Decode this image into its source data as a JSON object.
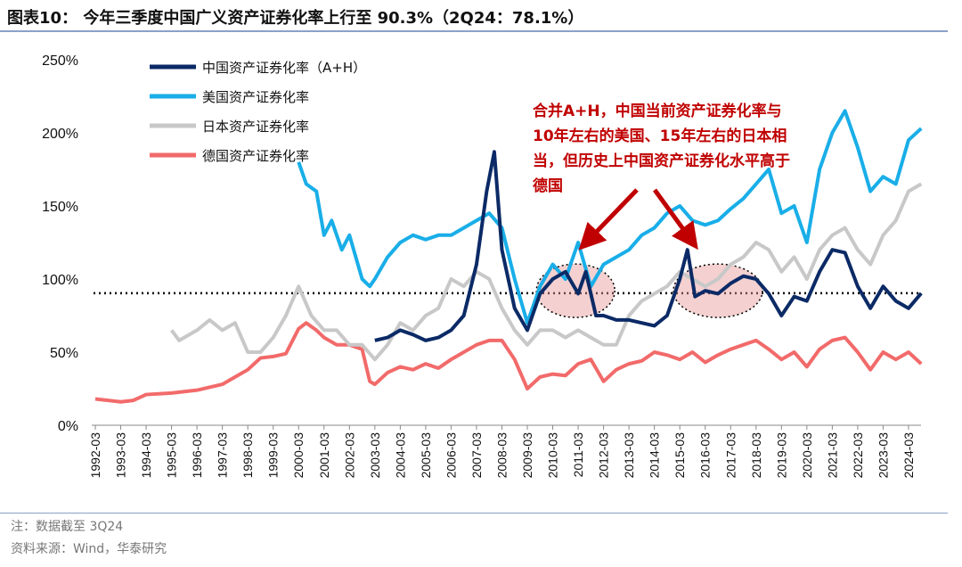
{
  "title": "图表10： 今年三季度中国广义资产证券化率上行至 90.3%（2Q24：78.1%）",
  "annotation": "合并A+H，中国当前资产证券化率与10年左右的美国、15年左右的日本相当，但历史上中国资产证券化水平高于德国",
  "footnotes": {
    "note": "注：数据截至 3Q24",
    "source": "资料来源：Wind，华泰研究"
  },
  "chart_data": {
    "type": "line",
    "title": "今年三季度中国广义资产证券化率上行至 90.3%（2Q24：78.1%）",
    "xlabel": "",
    "ylabel": "",
    "ylim": [
      0,
      250
    ],
    "yticks": [
      "0%",
      "50%",
      "100%",
      "150%",
      "200%",
      "250%"
    ],
    "xticks": [
      "1992-03",
      "1993-03",
      "1994-03",
      "1995-03",
      "1996-03",
      "1997-03",
      "1998-03",
      "1999-03",
      "2000-03",
      "2001-03",
      "2002-03",
      "2003-03",
      "2004-03",
      "2005-03",
      "2006-03",
      "2007-03",
      "2008-03",
      "2009-03",
      "2010-03",
      "2011-03",
      "2012-03",
      "2013-03",
      "2014-03",
      "2015-03",
      "2016-03",
      "2017-03",
      "2018-03",
      "2019-03",
      "2020-03",
      "2021-03",
      "2022-03",
      "2023-03",
      "2024-03"
    ],
    "reference_line": 90.3,
    "legend_position": "top-left",
    "series": [
      {
        "name": "中国资产证券化率（A+H）",
        "color": "#0b2a66",
        "points": [
          [
            2003,
            58
          ],
          [
            2003.5,
            60
          ],
          [
            2004,
            65
          ],
          [
            2004.5,
            62
          ],
          [
            2005,
            58
          ],
          [
            2005.5,
            60
          ],
          [
            2006,
            65
          ],
          [
            2006.5,
            75
          ],
          [
            2007,
            110
          ],
          [
            2007.4,
            160
          ],
          [
            2007.7,
            187
          ],
          [
            2008,
            120
          ],
          [
            2008.5,
            80
          ],
          [
            2009,
            65
          ],
          [
            2009.5,
            90
          ],
          [
            2010,
            100
          ],
          [
            2010.5,
            105
          ],
          [
            2011,
            90
          ],
          [
            2011.3,
            105
          ],
          [
            2011.7,
            75
          ],
          [
            2012,
            75
          ],
          [
            2012.5,
            72
          ],
          [
            2013,
            72
          ],
          [
            2013.5,
            70
          ],
          [
            2014,
            68
          ],
          [
            2014.5,
            75
          ],
          [
            2015,
            100
          ],
          [
            2015.3,
            120
          ],
          [
            2015.6,
            88
          ],
          [
            2016,
            92
          ],
          [
            2016.5,
            90
          ],
          [
            2017,
            97
          ],
          [
            2017.5,
            102
          ],
          [
            2018,
            100
          ],
          [
            2018.5,
            90
          ],
          [
            2019,
            75
          ],
          [
            2019.5,
            88
          ],
          [
            2020,
            85
          ],
          [
            2020.5,
            105
          ],
          [
            2021,
            120
          ],
          [
            2021.5,
            118
          ],
          [
            2022,
            95
          ],
          [
            2022.5,
            80
          ],
          [
            2023,
            95
          ],
          [
            2023.5,
            85
          ],
          [
            2024,
            80
          ],
          [
            2024.5,
            90.3
          ]
        ]
      },
      {
        "name": "美国资产证券化率",
        "color": "#19aee8",
        "points": [
          [
            2000,
            180
          ],
          [
            2000.3,
            165
          ],
          [
            2000.7,
            160
          ],
          [
            2001,
            130
          ],
          [
            2001.3,
            140
          ],
          [
            2001.7,
            120
          ],
          [
            2002,
            130
          ],
          [
            2002.5,
            100
          ],
          [
            2002.8,
            95
          ],
          [
            2003,
            100
          ],
          [
            2003.5,
            115
          ],
          [
            2004,
            125
          ],
          [
            2004.5,
            130
          ],
          [
            2005,
            127
          ],
          [
            2005.5,
            130
          ],
          [
            2006,
            130
          ],
          [
            2006.5,
            135
          ],
          [
            2007,
            140
          ],
          [
            2007.5,
            145
          ],
          [
            2008,
            135
          ],
          [
            2008.5,
            100
          ],
          [
            2009,
            70
          ],
          [
            2009.5,
            95
          ],
          [
            2010,
            110
          ],
          [
            2010.5,
            100
          ],
          [
            2011,
            125
          ],
          [
            2011.5,
            95
          ],
          [
            2012,
            110
          ],
          [
            2012.5,
            115
          ],
          [
            2013,
            120
          ],
          [
            2013.5,
            130
          ],
          [
            2014,
            135
          ],
          [
            2014.5,
            145
          ],
          [
            2015,
            150
          ],
          [
            2015.5,
            140
          ],
          [
            2016,
            137
          ],
          [
            2016.5,
            140
          ],
          [
            2017,
            148
          ],
          [
            2017.5,
            155
          ],
          [
            2018,
            165
          ],
          [
            2018.5,
            175
          ],
          [
            2019,
            145
          ],
          [
            2019.5,
            150
          ],
          [
            2020,
            125
          ],
          [
            2020.5,
            175
          ],
          [
            2021,
            200
          ],
          [
            2021.5,
            215
          ],
          [
            2022,
            190
          ],
          [
            2022.5,
            160
          ],
          [
            2023,
            170
          ],
          [
            2023.5,
            165
          ],
          [
            2024,
            195
          ],
          [
            2024.5,
            203
          ]
        ]
      },
      {
        "name": "日本资产证券化率",
        "color": "#c8c8c8",
        "points": [
          [
            1995,
            65
          ],
          [
            1995.3,
            58
          ],
          [
            1996,
            65
          ],
          [
            1996.5,
            72
          ],
          [
            1997,
            65
          ],
          [
            1997.5,
            70
          ],
          [
            1998,
            50
          ],
          [
            1998.5,
            50
          ],
          [
            1999,
            60
          ],
          [
            1999.5,
            75
          ],
          [
            2000,
            95
          ],
          [
            2000.5,
            75
          ],
          [
            2001,
            65
          ],
          [
            2001.5,
            65
          ],
          [
            2002,
            55
          ],
          [
            2002.5,
            55
          ],
          [
            2003,
            45
          ],
          [
            2003.5,
            55
          ],
          [
            2004,
            70
          ],
          [
            2004.5,
            65
          ],
          [
            2005,
            75
          ],
          [
            2005.5,
            80
          ],
          [
            2006,
            100
          ],
          [
            2006.5,
            95
          ],
          [
            2007,
            105
          ],
          [
            2007.5,
            100
          ],
          [
            2008,
            80
          ],
          [
            2008.5,
            65
          ],
          [
            2009,
            55
          ],
          [
            2009.5,
            65
          ],
          [
            2010,
            65
          ],
          [
            2010.5,
            60
          ],
          [
            2011,
            65
          ],
          [
            2011.5,
            60
          ],
          [
            2012,
            55
          ],
          [
            2012.5,
            55
          ],
          [
            2013,
            75
          ],
          [
            2013.5,
            85
          ],
          [
            2014,
            90
          ],
          [
            2014.5,
            95
          ],
          [
            2015,
            105
          ],
          [
            2015.5,
            100
          ],
          [
            2016,
            95
          ],
          [
            2016.5,
            100
          ],
          [
            2017,
            110
          ],
          [
            2017.5,
            115
          ],
          [
            2018,
            125
          ],
          [
            2018.5,
            120
          ],
          [
            2019,
            105
          ],
          [
            2019.5,
            115
          ],
          [
            2020,
            100
          ],
          [
            2020.5,
            120
          ],
          [
            2021,
            130
          ],
          [
            2021.5,
            135
          ],
          [
            2022,
            120
          ],
          [
            2022.5,
            110
          ],
          [
            2023,
            130
          ],
          [
            2023.5,
            140
          ],
          [
            2024,
            160
          ],
          [
            2024.5,
            165
          ]
        ]
      },
      {
        "name": "德国资产证券化率",
        "color": "#f26a6a",
        "points": [
          [
            1992,
            18
          ],
          [
            1993,
            16
          ],
          [
            1993.5,
            17
          ],
          [
            1994,
            21
          ],
          [
            1995,
            22
          ],
          [
            1996,
            24
          ],
          [
            1997,
            28
          ],
          [
            1997.5,
            33
          ],
          [
            1998,
            38
          ],
          [
            1998.5,
            46
          ],
          [
            1999,
            47
          ],
          [
            1999.5,
            49
          ],
          [
            2000,
            66
          ],
          [
            2000.3,
            70
          ],
          [
            2000.7,
            65
          ],
          [
            2001,
            60
          ],
          [
            2001.5,
            55
          ],
          [
            2002,
            55
          ],
          [
            2002.5,
            52
          ],
          [
            2002.8,
            30
          ],
          [
            2003,
            28
          ],
          [
            2003.5,
            36
          ],
          [
            2004,
            40
          ],
          [
            2004.5,
            38
          ],
          [
            2005,
            42
          ],
          [
            2005.5,
            39
          ],
          [
            2006,
            45
          ],
          [
            2006.5,
            50
          ],
          [
            2007,
            55
          ],
          [
            2007.5,
            58
          ],
          [
            2008,
            58
          ],
          [
            2008.5,
            45
          ],
          [
            2009,
            25
          ],
          [
            2009.5,
            33
          ],
          [
            2010,
            35
          ],
          [
            2010.5,
            34
          ],
          [
            2011,
            42
          ],
          [
            2011.5,
            45
          ],
          [
            2012,
            30
          ],
          [
            2012.5,
            38
          ],
          [
            2013,
            42
          ],
          [
            2013.5,
            44
          ],
          [
            2014,
            50
          ],
          [
            2014.5,
            48
          ],
          [
            2015,
            45
          ],
          [
            2015.5,
            50
          ],
          [
            2016,
            43
          ],
          [
            2016.5,
            48
          ],
          [
            2017,
            52
          ],
          [
            2017.5,
            55
          ],
          [
            2018,
            58
          ],
          [
            2018.5,
            52
          ],
          [
            2019,
            45
          ],
          [
            2019.5,
            50
          ],
          [
            2020,
            40
          ],
          [
            2020.5,
            52
          ],
          [
            2021,
            58
          ],
          [
            2021.5,
            60
          ],
          [
            2022,
            50
          ],
          [
            2022.5,
            38
          ],
          [
            2023,
            50
          ],
          [
            2023.5,
            45
          ],
          [
            2024,
            50
          ],
          [
            2024.5,
            42
          ]
        ]
      }
    ]
  }
}
